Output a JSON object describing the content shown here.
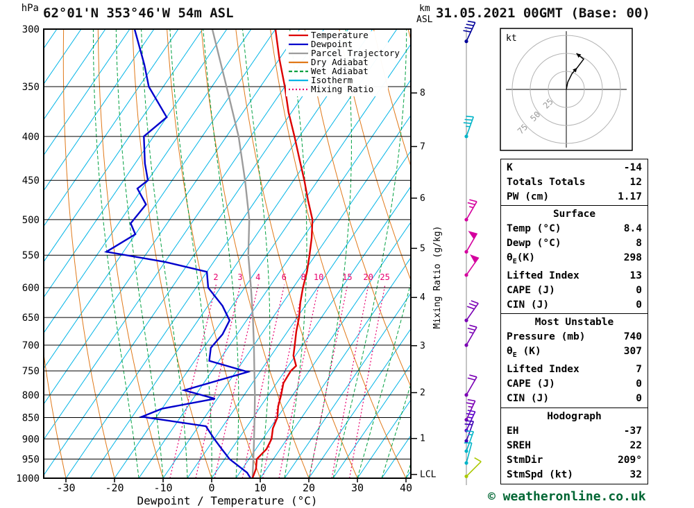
{
  "header": {
    "left_title": "62°01'N 353°46'W 54m ASL",
    "right_title": "31.05.2021 00GMT (Base: 00)"
  },
  "footer": {
    "credit": "© weatheronline.co.uk"
  },
  "axis_labels": {
    "pressure_unit": "hPa",
    "km": "km",
    "asl": "ASL",
    "bottom_title": "Dewpoint / Temperature (°C)",
    "mixing_ratio_axis": "Mixing Ratio (g/kg)",
    "lcl": "LCL",
    "hodograph_unit": "kt"
  },
  "chart_data": {
    "type": "skewt_log_p_sounding",
    "title": "62°01'N 353°46'W 54m ASL  31.05.2021 00GMT (Base: 00)",
    "pressure_ticks": [
      300,
      350,
      400,
      450,
      500,
      550,
      600,
      650,
      700,
      750,
      800,
      850,
      900,
      950,
      1000
    ],
    "pressure_range": [
      300,
      1000
    ],
    "temp_ticks": [
      -30,
      -20,
      -10,
      0,
      10,
      20,
      30,
      40
    ],
    "xlabel": "Dewpoint / Temperature (°C)",
    "km_ticks": [
      {
        "km": 8,
        "p": 356
      },
      {
        "km": 7,
        "p": 411
      },
      {
        "km": 6,
        "p": 472
      },
      {
        "km": 5,
        "p": 540
      },
      {
        "km": 4,
        "p": 616
      },
      {
        "km": 3,
        "p": 701
      },
      {
        "km": 2,
        "p": 795
      },
      {
        "km": 1,
        "p": 899
      }
    ],
    "lcl_pressure": 990,
    "isotherms": {
      "min": -100,
      "max": 45,
      "step": 5,
      "color": "#00b4e6"
    },
    "dry_adiabats": {
      "min": -40,
      "max": 140,
      "step": 10,
      "color": "#e07818"
    },
    "wet_adiabats": {
      "min": -15,
      "max": 40,
      "step": 5,
      "color": "#00a040"
    },
    "mixing_ratio_lines": {
      "values": [
        2,
        3,
        4,
        6,
        8,
        10,
        15,
        20,
        25
      ],
      "top_pressure": 590,
      "label_pressure": 597,
      "color": "#e8006e"
    },
    "legend": [
      {
        "label": "Temperature",
        "color": "#dd0000",
        "style": "solid"
      },
      {
        "label": "Dewpoint",
        "color": "#0000cc",
        "style": "solid"
      },
      {
        "label": "Parcel Trajectory",
        "color": "#9c9c9c",
        "style": "solid"
      },
      {
        "label": "Dry Adiabat",
        "color": "#e07818",
        "style": "solid"
      },
      {
        "label": "Wet Adiabat",
        "color": "#00a040",
        "style": "dashed"
      },
      {
        "label": "Isotherm",
        "color": "#00b4e6",
        "style": "solid"
      },
      {
        "label": "Mixing Ratio",
        "color": "#e8006e",
        "style": "dotted"
      }
    ],
    "series": {
      "temperature": {
        "name": "Temperature",
        "unit": "°C",
        "color": "#dd0000",
        "points": [
          [
            300,
            -50
          ],
          [
            325,
            -45
          ],
          [
            350,
            -40
          ],
          [
            375,
            -35.6
          ],
          [
            400,
            -31
          ],
          [
            425,
            -26.8
          ],
          [
            450,
            -22.8
          ],
          [
            475,
            -19.2
          ],
          [
            500,
            -15.6
          ],
          [
            525,
            -13.2
          ],
          [
            550,
            -11.2
          ],
          [
            575,
            -9.4
          ],
          [
            600,
            -8
          ],
          [
            625,
            -6.4
          ],
          [
            650,
            -4.6
          ],
          [
            675,
            -3.2
          ],
          [
            700,
            -1.6
          ],
          [
            720,
            -0.4
          ],
          [
            740,
            1.6
          ],
          [
            750,
            1.2
          ],
          [
            775,
            1.4
          ],
          [
            800,
            2.6
          ],
          [
            825,
            3.6
          ],
          [
            850,
            5
          ],
          [
            875,
            5.6
          ],
          [
            900,
            6.8
          ],
          [
            925,
            7.2
          ],
          [
            950,
            6.6
          ],
          [
            975,
            7.8
          ],
          [
            1000,
            8.4
          ]
        ]
      },
      "dewpoint": {
        "name": "Dewpoint",
        "unit": "°C",
        "color": "#0000cc",
        "points": [
          [
            300,
            -79
          ],
          [
            330,
            -72
          ],
          [
            350,
            -68
          ],
          [
            380,
            -60
          ],
          [
            400,
            -62
          ],
          [
            430,
            -58
          ],
          [
            450,
            -55
          ],
          [
            460,
            -56
          ],
          [
            480,
            -52
          ],
          [
            505,
            -52.5
          ],
          [
            520,
            -50
          ],
          [
            545,
            -53.5
          ],
          [
            560,
            -40
          ],
          [
            575,
            -30
          ],
          [
            600,
            -27.5
          ],
          [
            630,
            -22
          ],
          [
            655,
            -18.5
          ],
          [
            680,
            -18
          ],
          [
            705,
            -18.5
          ],
          [
            730,
            -17
          ],
          [
            752,
            -7.5
          ],
          [
            790,
            -18
          ],
          [
            808,
            -10.5
          ],
          [
            830,
            -20
          ],
          [
            848,
            -23
          ],
          [
            870,
            -8.5
          ],
          [
            900,
            -5
          ],
          [
            925,
            -2
          ],
          [
            950,
            1
          ],
          [
            985,
            6.5
          ],
          [
            1000,
            8
          ]
        ]
      },
      "parcel": {
        "name": "Parcel Trajectory",
        "unit": "°C",
        "color": "#9c9c9c",
        "points": [
          [
            300,
            -63
          ],
          [
            350,
            -52
          ],
          [
            400,
            -42.5
          ],
          [
            450,
            -35
          ],
          [
            500,
            -28.6
          ],
          [
            550,
            -23.8
          ],
          [
            600,
            -18.7
          ],
          [
            650,
            -14.1
          ],
          [
            700,
            -10
          ],
          [
            750,
            -6.3
          ],
          [
            800,
            -2.8
          ],
          [
            850,
            0.3
          ],
          [
            900,
            3.2
          ],
          [
            950,
            5.9
          ],
          [
            1000,
            8.4
          ]
        ]
      }
    }
  },
  "wind_column": {
    "unit": "kt",
    "barbs": [
      {
        "p": 310,
        "speed": 40,
        "dir": 205,
        "color": "#000099"
      },
      {
        "p": 400,
        "speed": 35,
        "dir": 200,
        "color": "#00b4c8"
      },
      {
        "p": 500,
        "speed": 25,
        "dir": 210,
        "color": "#d4009e"
      },
      {
        "p": 545,
        "speed": 50,
        "dir": 210,
        "color": "#d4009e"
      },
      {
        "p": 580,
        "speed": 50,
        "dir": 215,
        "color": "#d4009e"
      },
      {
        "p": 655,
        "speed": 30,
        "dir": 215,
        "color": "#7a00b4"
      },
      {
        "p": 700,
        "speed": 25,
        "dir": 210,
        "color": "#7a00b4"
      },
      {
        "p": 800,
        "speed": 20,
        "dir": 210,
        "color": "#7a00b4"
      },
      {
        "p": 855,
        "speed": 25,
        "dir": 205,
        "color": "#7a00b4"
      },
      {
        "p": 880,
        "speed": 25,
        "dir": 205,
        "color": "#5a00c8"
      },
      {
        "p": 905,
        "speed": 20,
        "dir": 200,
        "color": "#3c00b4"
      },
      {
        "p": 930,
        "speed": 15,
        "dir": 200,
        "color": "#00b4c8"
      },
      {
        "p": 960,
        "speed": 10,
        "dir": 195,
        "color": "#00b4c8"
      },
      {
        "p": 995,
        "speed": 10,
        "dir": 225,
        "color": "#aac800"
      }
    ]
  },
  "hodograph_panel": {
    "unit_label": "kt",
    "rings": [
      25,
      50,
      75
    ],
    "trace_kt": [
      [
        0,
        0
      ],
      [
        2,
        10
      ],
      [
        8,
        22
      ],
      [
        15,
        30
      ],
      [
        24,
        42
      ],
      [
        14,
        50
      ]
    ]
  },
  "tables": {
    "indices": {
      "rows": [
        [
          "K",
          "-14"
        ],
        [
          "Totals Totals",
          "12"
        ],
        [
          "PW (cm)",
          "1.17"
        ]
      ]
    },
    "surface": {
      "title": "Surface",
      "rows": [
        [
          "Temp (°C)",
          "8.4"
        ],
        [
          "Dewp (°C)",
          "8"
        ],
        [
          "θE(K)",
          "298"
        ],
        [
          "Lifted Index",
          "13"
        ],
        [
          "CAPE (J)",
          "0"
        ],
        [
          "CIN (J)",
          "0"
        ]
      ]
    },
    "most_unstable": {
      "title": "Most Unstable",
      "rows": [
        [
          "Pressure (mb)",
          "740"
        ],
        [
          "θE (K)",
          "307"
        ],
        [
          "Lifted Index",
          "7"
        ],
        [
          "CAPE (J)",
          "0"
        ],
        [
          "CIN (J)",
          "0"
        ]
      ]
    },
    "hodograph": {
      "title": "Hodograph",
      "rows": [
        [
          "EH",
          "-37"
        ],
        [
          "SREH",
          "22"
        ],
        [
          "StmDir",
          "209°"
        ],
        [
          "StmSpd (kt)",
          "32"
        ]
      ]
    }
  }
}
